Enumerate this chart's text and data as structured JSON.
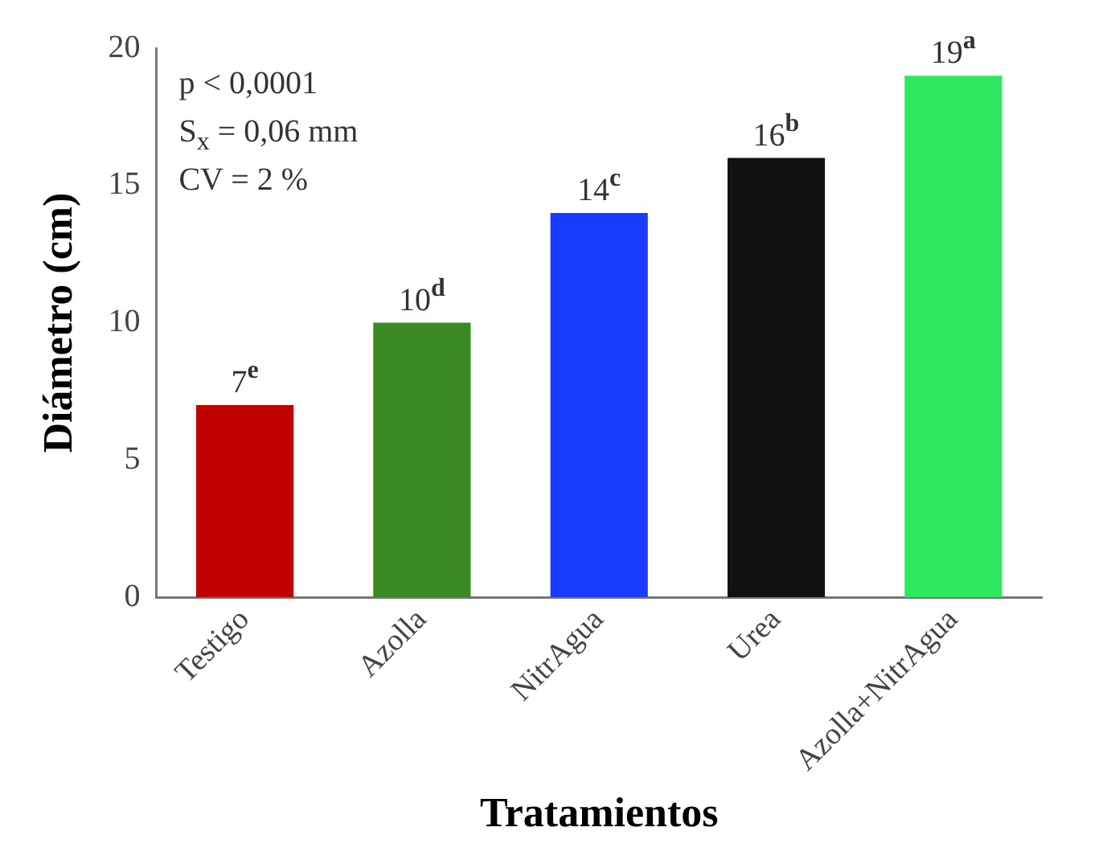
{
  "chart_data": {
    "type": "bar",
    "xlabel": "Tratamientos",
    "ylabel": "Diámetro (cm)",
    "categories": [
      "Testigo",
      "Azolla",
      "NitrAgua",
      "Urea",
      "Azolla+NitrAgua"
    ],
    "values": [
      7,
      10,
      14,
      16,
      19
    ],
    "colors": [
      "#c00000",
      "#3a8a24",
      "#1a3cff",
      "#111111",
      "#2ee860"
    ],
    "value_labels": [
      "7$^{e}$",
      "10$^{d}$",
      "14$^{c}$",
      "16$^{b}$",
      "19$^{a}$"
    ],
    "annotations": [
      "p < 0,0001",
      "S$_{x}$ = 0,06 mm",
      "CV = 2 %"
    ],
    "ylim": [
      0,
      20
    ],
    "yticks": [
      0,
      5,
      10,
      15,
      20
    ],
    "grid": false,
    "legend": false
  }
}
